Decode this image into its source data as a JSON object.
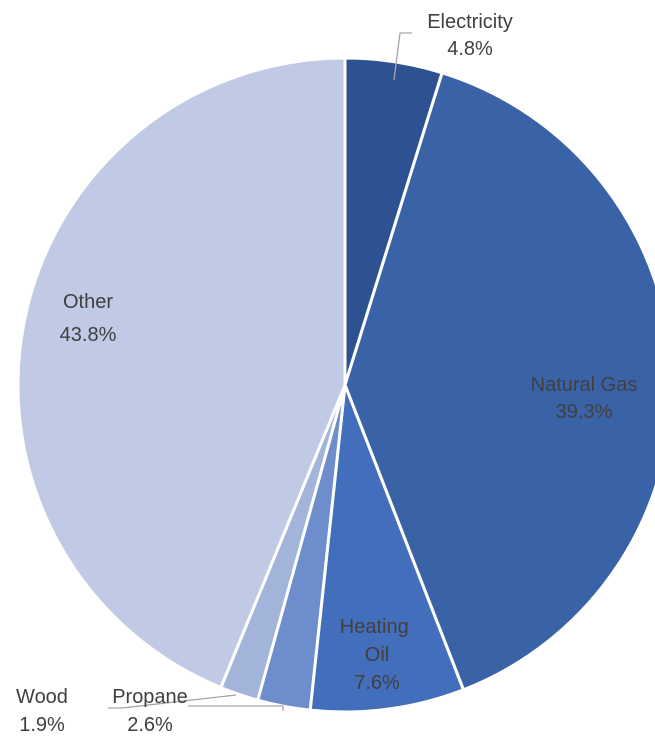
{
  "chart_data": {
    "type": "pie",
    "title": "",
    "start_angle_deg": 0,
    "direction": "clockwise",
    "slices": [
      {
        "name": "Electricity",
        "value": 4.8,
        "label": "4.8%",
        "color": "#2E5291"
      },
      {
        "name": "Natural Gas",
        "value": 39.3,
        "label": "39.3%",
        "color": "#3A62A7"
      },
      {
        "name": "Heating Oil",
        "value": 7.6,
        "label": "7.6%",
        "color": "#426EBB"
      },
      {
        "name": "Propane",
        "value": 2.6,
        "label": "2.6%",
        "color": "#6E8DCC"
      },
      {
        "name": "Wood",
        "value": 1.9,
        "label": "1.9%",
        "color": "#A3B4DB"
      },
      {
        "name": "Other",
        "value": 43.8,
        "label": "43.8%",
        "color": "#C0CAE4"
      }
    ],
    "legend": "none"
  }
}
